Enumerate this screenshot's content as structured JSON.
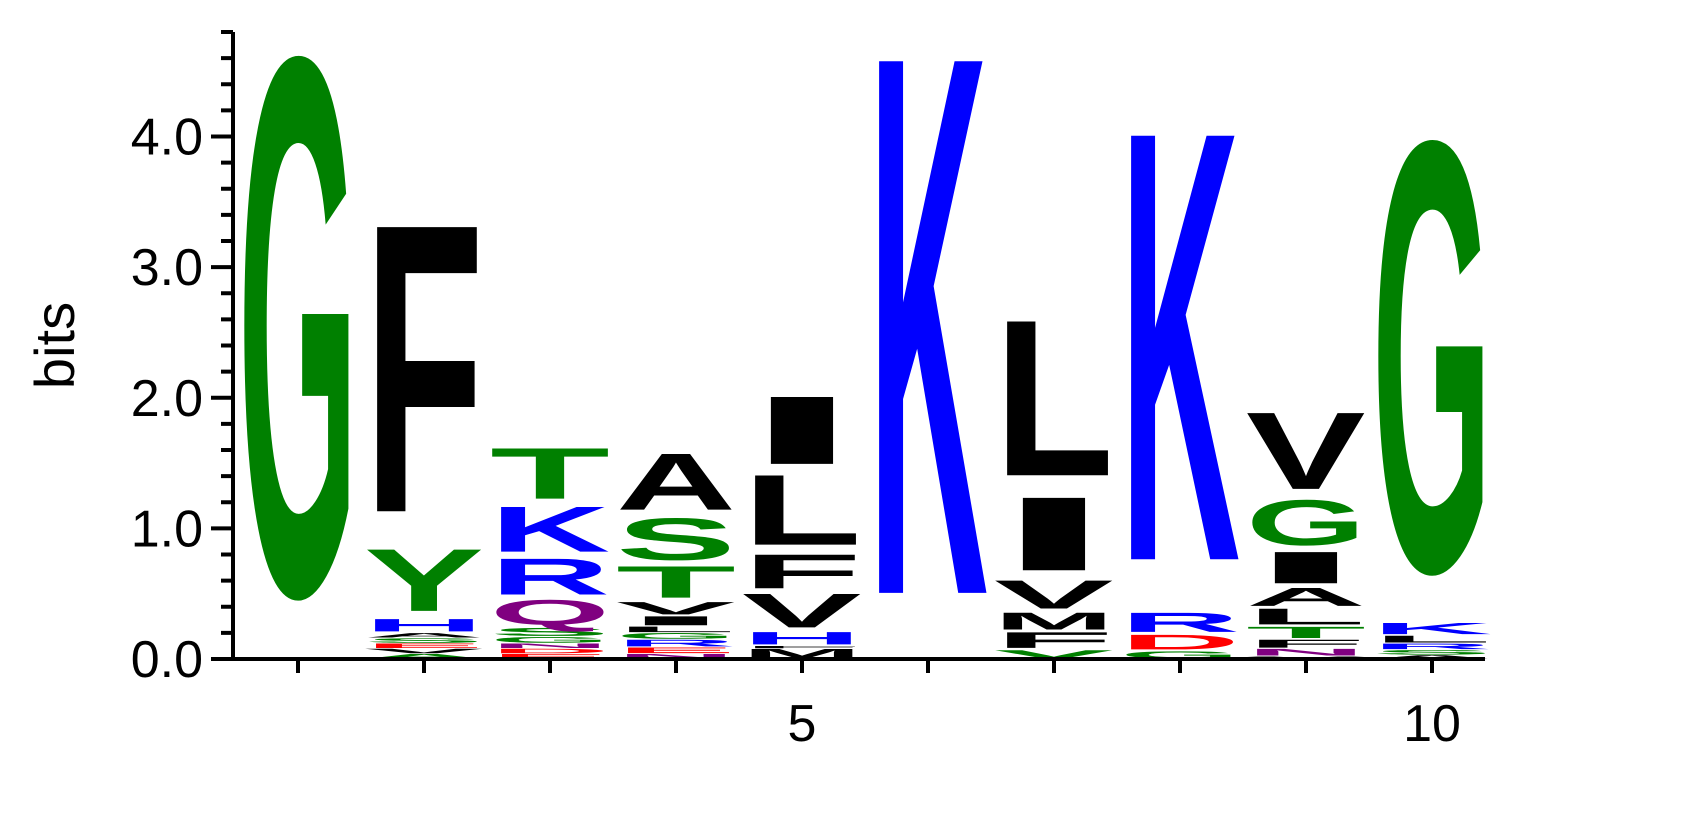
{
  "chart_data": {
    "type": "sequence-logo",
    "title": "",
    "xlabel": "",
    "ylabel": "bits",
    "ylim": [
      0,
      4.8
    ],
    "y_ticks": [
      {
        "value": 0,
        "label": "0.0"
      },
      {
        "value": 1,
        "label": "1.0"
      },
      {
        "value": 2,
        "label": "2.0"
      },
      {
        "value": 3,
        "label": "3.0"
      },
      {
        "value": 4,
        "label": "4.0"
      }
    ],
    "y_minor_step": 0.2,
    "x_ticks": [
      {
        "position": 5,
        "label": "5"
      },
      {
        "position": 10,
        "label": "10"
      }
    ],
    "colors": {
      "green": "#008000",
      "black": "#000000",
      "blue": "#0000ff",
      "purple": "#800080",
      "red": "#ff0000"
    },
    "positions": [
      {
        "position": 1,
        "stack": [
          {
            "letter": "G",
            "color": "green",
            "height": 4.75
          }
        ]
      },
      {
        "position": 2,
        "stack": [
          {
            "letter": "A",
            "color": "green",
            "height": 0.04
          },
          {
            "letter": "V",
            "color": "black",
            "height": 0.04
          },
          {
            "letter": "E",
            "color": "red",
            "height": 0.04
          },
          {
            "letter": "S",
            "color": "green",
            "height": 0.04
          },
          {
            "letter": "A",
            "color": "black",
            "height": 0.04
          },
          {
            "letter": "H",
            "color": "blue",
            "height": 0.11
          },
          {
            "letter": "Y",
            "color": "green",
            "height": 0.55
          },
          {
            "letter": "F",
            "color": "black",
            "height": 2.55
          }
        ]
      },
      {
        "position": 3,
        "stack": [
          {
            "letter": "E",
            "color": "red",
            "height": 0.04
          },
          {
            "letter": "D",
            "color": "red",
            "height": 0.04
          },
          {
            "letter": "N",
            "color": "purple",
            "height": 0.04
          },
          {
            "letter": "G",
            "color": "green",
            "height": 0.05
          },
          {
            "letter": "S",
            "color": "green",
            "height": 0.07
          },
          {
            "letter": "Q",
            "color": "purple",
            "height": 0.22
          },
          {
            "letter": "R",
            "color": "blue",
            "height": 0.32
          },
          {
            "letter": "K",
            "color": "blue",
            "height": 0.4
          },
          {
            "letter": "T",
            "color": "green",
            "height": 0.45
          }
        ]
      },
      {
        "position": 4,
        "stack": [
          {
            "letter": "N",
            "color": "purple",
            "height": 0.04
          },
          {
            "letter": "E",
            "color": "red",
            "height": 0.05
          },
          {
            "letter": "R",
            "color": "blue",
            "height": 0.06
          },
          {
            "letter": "G",
            "color": "green",
            "height": 0.05
          },
          {
            "letter": "L",
            "color": "black",
            "height": 0.05
          },
          {
            "letter": "I",
            "color": "black",
            "height": 0.08
          },
          {
            "letter": "V",
            "color": "black",
            "height": 0.11
          },
          {
            "letter": "T",
            "color": "green",
            "height": 0.28
          },
          {
            "letter": "S",
            "color": "green",
            "height": 0.37
          },
          {
            "letter": "A",
            "color": "black",
            "height": 0.5
          }
        ]
      },
      {
        "position": 5,
        "stack": [
          {
            "letter": "M",
            "color": "black",
            "height": 0.08
          },
          {
            "letter": "F",
            "color": "black",
            "height": 0.02
          },
          {
            "letter": "H",
            "color": "blue",
            "height": 0.11
          },
          {
            "letter": "V",
            "color": "black",
            "height": 0.3
          },
          {
            "letter": "F",
            "color": "black",
            "height": 0.3
          },
          {
            "letter": "L",
            "color": "black",
            "height": 0.62
          },
          {
            "letter": "I",
            "color": "black",
            "height": 0.6
          }
        ]
      },
      {
        "position": 6,
        "stack": [
          {
            "letter": "K",
            "color": "blue",
            "height": 4.77
          }
        ]
      },
      {
        "position": 7,
        "stack": [
          {
            "letter": "V",
            "color": "green",
            "height": 0.07
          },
          {
            "letter": "F",
            "color": "black",
            "height": 0.14
          },
          {
            "letter": "M",
            "color": "black",
            "height": 0.15
          },
          {
            "letter": "V",
            "color": "black",
            "height": 0.25
          },
          {
            "letter": "I",
            "color": "black",
            "height": 0.65
          },
          {
            "letter": "L",
            "color": "black",
            "height": 1.38
          }
        ]
      },
      {
        "position": 8,
        "stack": [
          {
            "letter": "G",
            "color": "green",
            "height": 0.06
          },
          {
            "letter": "D",
            "color": "red",
            "height": 0.13
          },
          {
            "letter": "R",
            "color": "blue",
            "height": 0.17
          },
          {
            "letter": "K",
            "color": "blue",
            "height": 3.8
          }
        ]
      },
      {
        "position": 9,
        "stack": [
          {
            "letter": "V",
            "color": "black",
            "height": 0.02
          },
          {
            "letter": "N",
            "color": "purple",
            "height": 0.06
          },
          {
            "letter": "F",
            "color": "black",
            "height": 0.07
          },
          {
            "letter": "T",
            "color": "green",
            "height": 0.1
          },
          {
            "letter": "L",
            "color": "black",
            "height": 0.14
          },
          {
            "letter": "A",
            "color": "black",
            "height": 0.16
          },
          {
            "letter": "I",
            "color": "black",
            "height": 0.28
          },
          {
            "letter": "G",
            "color": "green",
            "height": 0.4
          },
          {
            "letter": "V",
            "color": "black",
            "height": 0.68
          }
        ]
      },
      {
        "position": 10,
        "stack": [
          {
            "letter": "A",
            "color": "black",
            "height": 0.03
          },
          {
            "letter": "S",
            "color": "green",
            "height": 0.04
          },
          {
            "letter": "R",
            "color": "blue",
            "height": 0.05
          },
          {
            "letter": "L",
            "color": "black",
            "height": 0.06
          },
          {
            "letter": "K",
            "color": "blue",
            "height": 0.1
          },
          {
            "letter": "G",
            "color": "green",
            "height": 3.8
          }
        ]
      }
    ]
  }
}
